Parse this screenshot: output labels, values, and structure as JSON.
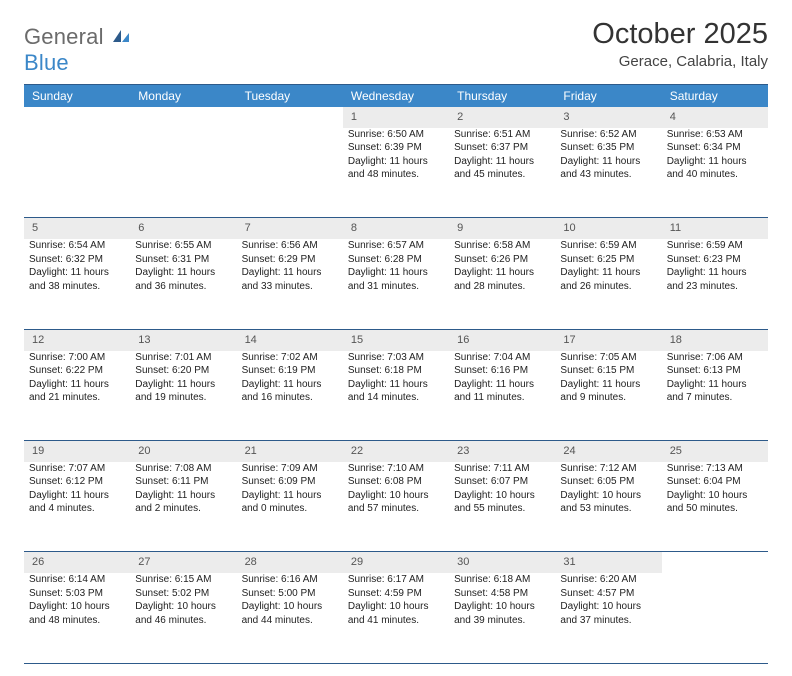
{
  "logo": {
    "gray": "General",
    "blue": "Blue"
  },
  "title": "October 2025",
  "location": "Gerace, Calabria, Italy",
  "columns": [
    "Sunday",
    "Monday",
    "Tuesday",
    "Wednesday",
    "Thursday",
    "Friday",
    "Saturday"
  ],
  "colors": {
    "header_bg": "#3b87c8",
    "header_border": "#2d5a8a",
    "daynum_bg": "#ececec",
    "text": "#222222",
    "logo_gray": "#6b6b6b",
    "logo_blue": "#3b87c8"
  },
  "weeks": [
    {
      "nums": [
        "",
        "",
        "",
        "1",
        "2",
        "3",
        "4"
      ],
      "cells": [
        null,
        null,
        null,
        {
          "sunrise": "Sunrise: 6:50 AM",
          "sunset": "Sunset: 6:39 PM",
          "day1": "Daylight: 11 hours",
          "day2": "and 48 minutes."
        },
        {
          "sunrise": "Sunrise: 6:51 AM",
          "sunset": "Sunset: 6:37 PM",
          "day1": "Daylight: 11 hours",
          "day2": "and 45 minutes."
        },
        {
          "sunrise": "Sunrise: 6:52 AM",
          "sunset": "Sunset: 6:35 PM",
          "day1": "Daylight: 11 hours",
          "day2": "and 43 minutes."
        },
        {
          "sunrise": "Sunrise: 6:53 AM",
          "sunset": "Sunset: 6:34 PM",
          "day1": "Daylight: 11 hours",
          "day2": "and 40 minutes."
        }
      ]
    },
    {
      "nums": [
        "5",
        "6",
        "7",
        "8",
        "9",
        "10",
        "11"
      ],
      "cells": [
        {
          "sunrise": "Sunrise: 6:54 AM",
          "sunset": "Sunset: 6:32 PM",
          "day1": "Daylight: 11 hours",
          "day2": "and 38 minutes."
        },
        {
          "sunrise": "Sunrise: 6:55 AM",
          "sunset": "Sunset: 6:31 PM",
          "day1": "Daylight: 11 hours",
          "day2": "and 36 minutes."
        },
        {
          "sunrise": "Sunrise: 6:56 AM",
          "sunset": "Sunset: 6:29 PM",
          "day1": "Daylight: 11 hours",
          "day2": "and 33 minutes."
        },
        {
          "sunrise": "Sunrise: 6:57 AM",
          "sunset": "Sunset: 6:28 PM",
          "day1": "Daylight: 11 hours",
          "day2": "and 31 minutes."
        },
        {
          "sunrise": "Sunrise: 6:58 AM",
          "sunset": "Sunset: 6:26 PM",
          "day1": "Daylight: 11 hours",
          "day2": "and 28 minutes."
        },
        {
          "sunrise": "Sunrise: 6:59 AM",
          "sunset": "Sunset: 6:25 PM",
          "day1": "Daylight: 11 hours",
          "day2": "and 26 minutes."
        },
        {
          "sunrise": "Sunrise: 6:59 AM",
          "sunset": "Sunset: 6:23 PM",
          "day1": "Daylight: 11 hours",
          "day2": "and 23 minutes."
        }
      ]
    },
    {
      "nums": [
        "12",
        "13",
        "14",
        "15",
        "16",
        "17",
        "18"
      ],
      "cells": [
        {
          "sunrise": "Sunrise: 7:00 AM",
          "sunset": "Sunset: 6:22 PM",
          "day1": "Daylight: 11 hours",
          "day2": "and 21 minutes."
        },
        {
          "sunrise": "Sunrise: 7:01 AM",
          "sunset": "Sunset: 6:20 PM",
          "day1": "Daylight: 11 hours",
          "day2": "and 19 minutes."
        },
        {
          "sunrise": "Sunrise: 7:02 AM",
          "sunset": "Sunset: 6:19 PM",
          "day1": "Daylight: 11 hours",
          "day2": "and 16 minutes."
        },
        {
          "sunrise": "Sunrise: 7:03 AM",
          "sunset": "Sunset: 6:18 PM",
          "day1": "Daylight: 11 hours",
          "day2": "and 14 minutes."
        },
        {
          "sunrise": "Sunrise: 7:04 AM",
          "sunset": "Sunset: 6:16 PM",
          "day1": "Daylight: 11 hours",
          "day2": "and 11 minutes."
        },
        {
          "sunrise": "Sunrise: 7:05 AM",
          "sunset": "Sunset: 6:15 PM",
          "day1": "Daylight: 11 hours",
          "day2": "and 9 minutes."
        },
        {
          "sunrise": "Sunrise: 7:06 AM",
          "sunset": "Sunset: 6:13 PM",
          "day1": "Daylight: 11 hours",
          "day2": "and 7 minutes."
        }
      ]
    },
    {
      "nums": [
        "19",
        "20",
        "21",
        "22",
        "23",
        "24",
        "25"
      ],
      "cells": [
        {
          "sunrise": "Sunrise: 7:07 AM",
          "sunset": "Sunset: 6:12 PM",
          "day1": "Daylight: 11 hours",
          "day2": "and 4 minutes."
        },
        {
          "sunrise": "Sunrise: 7:08 AM",
          "sunset": "Sunset: 6:11 PM",
          "day1": "Daylight: 11 hours",
          "day2": "and 2 minutes."
        },
        {
          "sunrise": "Sunrise: 7:09 AM",
          "sunset": "Sunset: 6:09 PM",
          "day1": "Daylight: 11 hours",
          "day2": "and 0 minutes."
        },
        {
          "sunrise": "Sunrise: 7:10 AM",
          "sunset": "Sunset: 6:08 PM",
          "day1": "Daylight: 10 hours",
          "day2": "and 57 minutes."
        },
        {
          "sunrise": "Sunrise: 7:11 AM",
          "sunset": "Sunset: 6:07 PM",
          "day1": "Daylight: 10 hours",
          "day2": "and 55 minutes."
        },
        {
          "sunrise": "Sunrise: 7:12 AM",
          "sunset": "Sunset: 6:05 PM",
          "day1": "Daylight: 10 hours",
          "day2": "and 53 minutes."
        },
        {
          "sunrise": "Sunrise: 7:13 AM",
          "sunset": "Sunset: 6:04 PM",
          "day1": "Daylight: 10 hours",
          "day2": "and 50 minutes."
        }
      ]
    },
    {
      "nums": [
        "26",
        "27",
        "28",
        "29",
        "30",
        "31",
        ""
      ],
      "cells": [
        {
          "sunrise": "Sunrise: 6:14 AM",
          "sunset": "Sunset: 5:03 PM",
          "day1": "Daylight: 10 hours",
          "day2": "and 48 minutes."
        },
        {
          "sunrise": "Sunrise: 6:15 AM",
          "sunset": "Sunset: 5:02 PM",
          "day1": "Daylight: 10 hours",
          "day2": "and 46 minutes."
        },
        {
          "sunrise": "Sunrise: 6:16 AM",
          "sunset": "Sunset: 5:00 PM",
          "day1": "Daylight: 10 hours",
          "day2": "and 44 minutes."
        },
        {
          "sunrise": "Sunrise: 6:17 AM",
          "sunset": "Sunset: 4:59 PM",
          "day1": "Daylight: 10 hours",
          "day2": "and 41 minutes."
        },
        {
          "sunrise": "Sunrise: 6:18 AM",
          "sunset": "Sunset: 4:58 PM",
          "day1": "Daylight: 10 hours",
          "day2": "and 39 minutes."
        },
        {
          "sunrise": "Sunrise: 6:20 AM",
          "sunset": "Sunset: 4:57 PM",
          "day1": "Daylight: 10 hours",
          "day2": "and 37 minutes."
        },
        null
      ]
    }
  ]
}
